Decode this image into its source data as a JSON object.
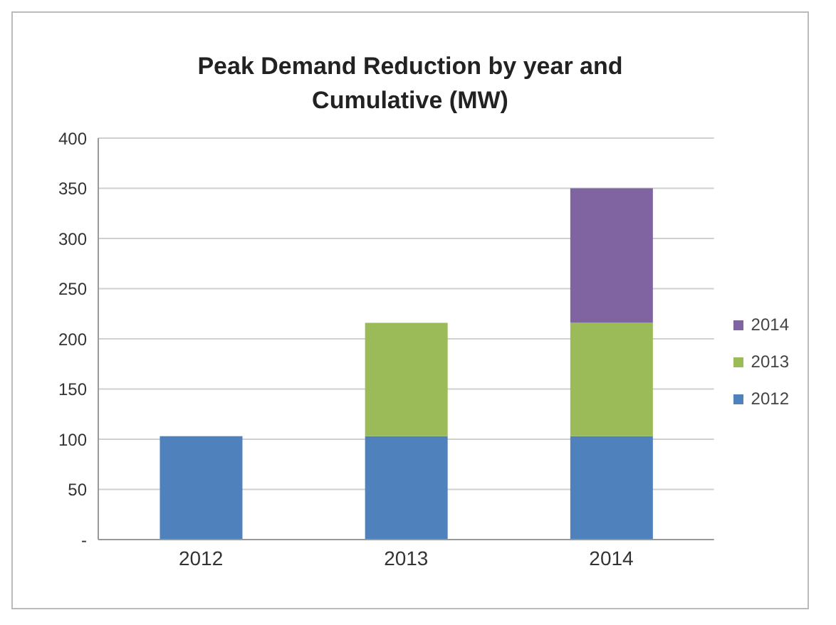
{
  "chart_data": {
    "type": "bar",
    "title": "Peak Demand Reduction by year and Cumulative (MW)",
    "categories": [
      "2012",
      "2013",
      "2014"
    ],
    "stacked": true,
    "series": [
      {
        "name": "2012",
        "color": "#4f81bd",
        "values": [
          103,
          103,
          103
        ]
      },
      {
        "name": "2013",
        "color": "#9bbb59",
        "values": [
          0,
          113,
          113
        ]
      },
      {
        "name": "2014",
        "color": "#8064a2",
        "values": [
          0,
          0,
          134
        ]
      }
    ],
    "ylim": [
      0,
      400
    ],
    "yticks": [
      {
        "value": 0,
        "label": "-"
      },
      50,
      100,
      150,
      200,
      250,
      300,
      350,
      400
    ],
    "grid": "y",
    "legend": "right"
  }
}
